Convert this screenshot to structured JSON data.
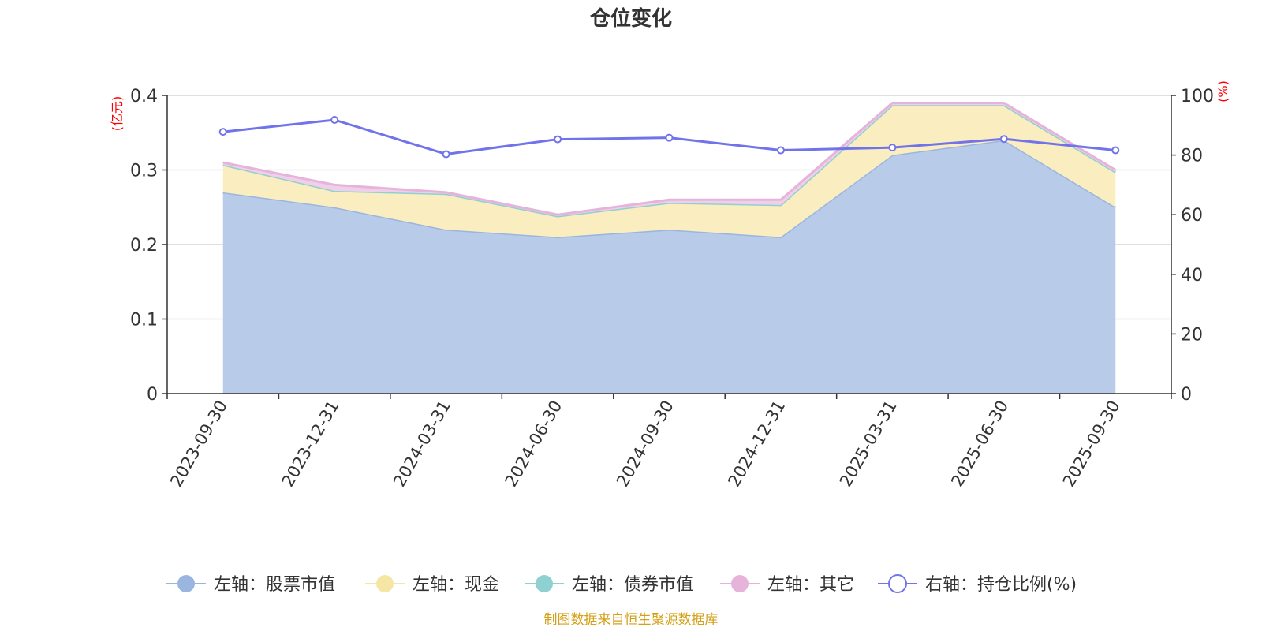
{
  "chart_data": {
    "type": "area",
    "title": "仓位变化",
    "categories": [
      "2023-09-30",
      "2023-12-31",
      "2024-03-31",
      "2024-06-30",
      "2024-09-30",
      "2024-12-31",
      "2025-03-31",
      "2025-06-30",
      "2025-09-30"
    ],
    "left_axis": {
      "unit": "(亿元)",
      "ylim": [
        0,
        0.4
      ],
      "ticks": [
        "0",
        "0.1",
        "0.2",
        "0.3",
        "0.4"
      ]
    },
    "right_axis": {
      "unit": "(%)",
      "ylim": [
        0,
        100
      ],
      "ticks": [
        "0",
        "20",
        "40",
        "60",
        "80",
        "100"
      ]
    },
    "series": [
      {
        "name": "左轴：股票市值",
        "axis": "left",
        "stacked": true,
        "color": "#9ab5e0",
        "fill": "#b8cce9",
        "values": [
          0.27,
          0.25,
          0.22,
          0.21,
          0.22,
          0.21,
          0.32,
          0.34,
          0.25
        ]
      },
      {
        "name": "左轴：现金",
        "axis": "left",
        "stacked": true,
        "color": "#f6e6a6",
        "fill": "#faedc0",
        "values": [
          0.037,
          0.022,
          0.048,
          0.028,
          0.036,
          0.043,
          0.067,
          0.047,
          0.047
        ]
      },
      {
        "name": "左轴：债券市值",
        "axis": "left",
        "stacked": true,
        "color": "#8fd1d3",
        "fill": "#b5e3e4",
        "values": [
          0,
          0,
          0,
          0,
          0,
          0,
          0,
          0,
          0
        ]
      },
      {
        "name": "左轴：其它",
        "axis": "left",
        "stacked": true,
        "color": "#e6b3da",
        "fill": "#efd0e8",
        "values": [
          0.003,
          0.008,
          0.002,
          0.002,
          0.004,
          0.007,
          0.003,
          0.003,
          0.003
        ]
      },
      {
        "name": "右轴：持仓比例(%)",
        "axis": "right",
        "type": "line",
        "color": "#7173ea",
        "values": [
          87.8,
          91.8,
          80.3,
          85.3,
          85.8,
          81.6,
          82.5,
          85.4,
          81.6
        ]
      }
    ],
    "legend_position": "bottom",
    "source": "制图数据来自恒生聚源数据库"
  }
}
